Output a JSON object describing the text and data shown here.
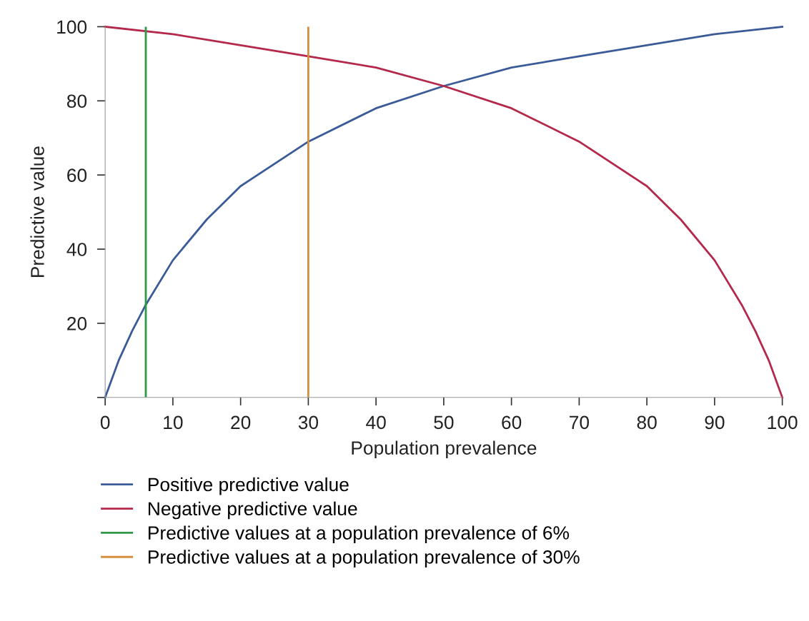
{
  "chart_data": {
    "type": "line",
    "xlabel": "Population prevalence",
    "ylabel": "Predictive value",
    "xlim": [
      0,
      100
    ],
    "ylim": [
      0,
      100
    ],
    "xticks": [
      0,
      10,
      20,
      30,
      40,
      50,
      60,
      70,
      80,
      90,
      100
    ],
    "yticks": [
      {
        "value": 0,
        "label": null
      },
      20,
      40,
      60,
      80,
      100
    ],
    "series": [
      {
        "name": "Positive predictive value",
        "color": "#3b5b98",
        "x": [
          0,
          2,
          4,
          6,
          10,
          15,
          20,
          30,
          40,
          50,
          60,
          70,
          80,
          90,
          100
        ],
        "values": [
          0,
          10,
          18,
          25,
          37,
          48,
          57,
          69,
          78,
          84,
          89,
          92,
          95,
          98,
          100
        ]
      },
      {
        "name": "Negative predictive value",
        "color": "#b3284b",
        "x": [
          0,
          10,
          20,
          30,
          40,
          50,
          60,
          70,
          80,
          85,
          90,
          94,
          96,
          98,
          100
        ],
        "values": [
          100,
          98,
          95,
          92,
          89,
          84,
          78,
          69,
          57,
          48,
          37,
          25,
          18,
          10,
          0
        ]
      }
    ],
    "ref_lines": [
      {
        "axis": "x",
        "value": 6,
        "label": "Predictive values at a population prevalence of 6%",
        "color": "#2e9a48"
      },
      {
        "axis": "x",
        "value": 30,
        "label": "Predictive values at a population prevalence of 30%",
        "color": "#d4903c"
      }
    ],
    "grid": false,
    "legend": "bottom",
    "marker": "none",
    "line_style": "solid"
  }
}
